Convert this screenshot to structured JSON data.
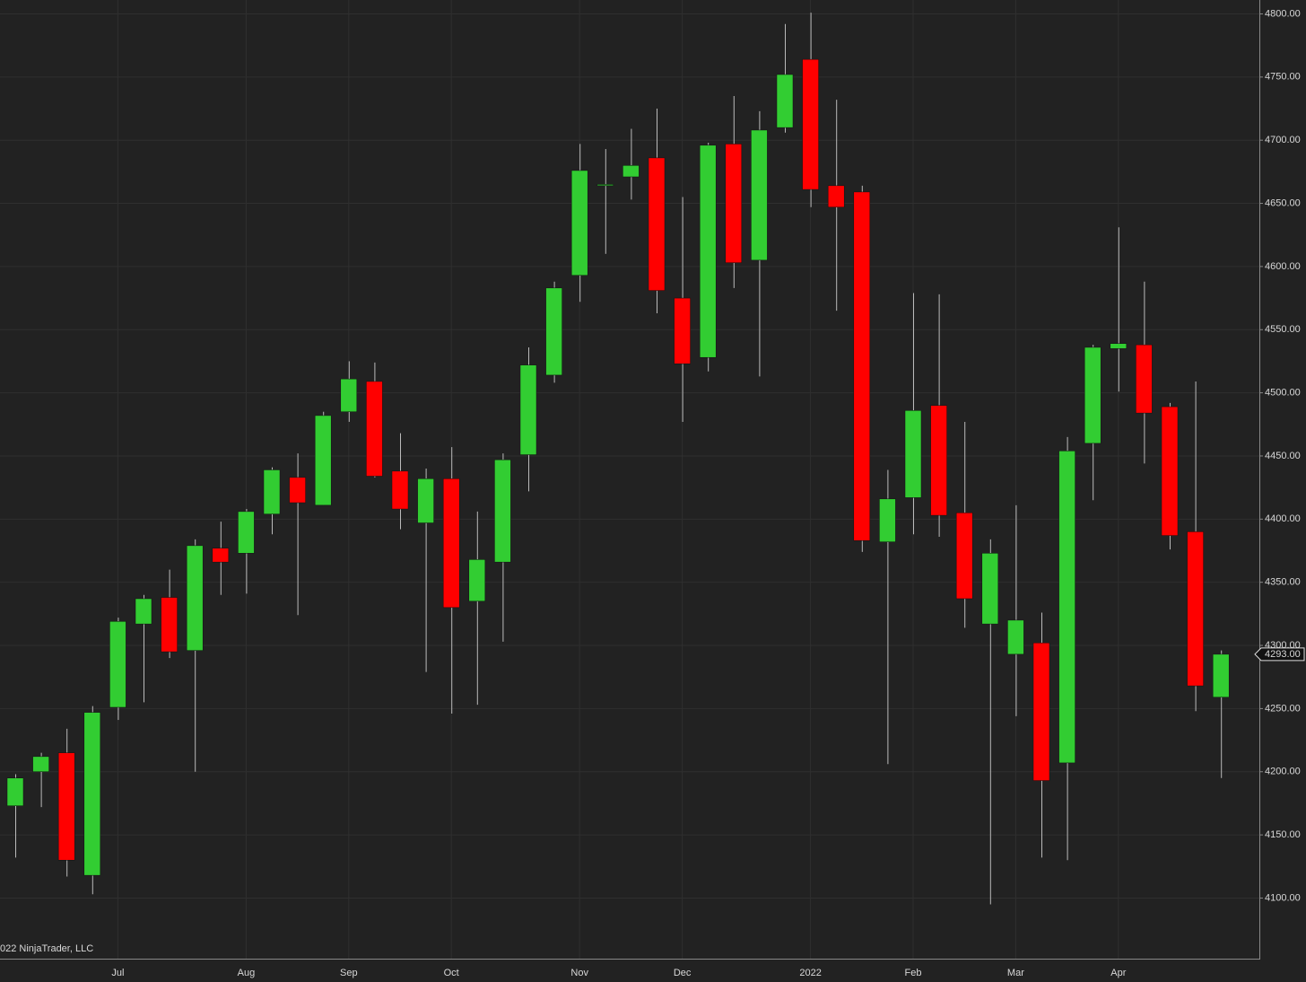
{
  "chart_data": {
    "type": "candlestick",
    "categories": [
      null,
      null,
      null,
      null,
      "Jul",
      null,
      null,
      null,
      null,
      "Aug",
      null,
      null,
      null,
      "Sep",
      null,
      null,
      null,
      "Oct",
      null,
      null,
      null,
      null,
      "Nov",
      null,
      null,
      null,
      "Dec",
      null,
      null,
      null,
      null,
      "2022",
      null,
      null,
      null,
      "Feb",
      null,
      null,
      null,
      "Mar",
      null,
      null,
      null,
      "Apr",
      null,
      null,
      null,
      null
    ],
    "open": [
      4173,
      4200,
      4215,
      4118,
      4251,
      4317,
      4338,
      4296,
      4377,
      4373,
      4404,
      4433,
      4411,
      4485,
      4509,
      4438,
      4397,
      4432,
      4335,
      4366,
      4451,
      4514,
      4593,
      4664,
      4671,
      4686,
      4575,
      4528,
      4697,
      4605,
      4710,
      4764,
      4664,
      4659,
      4382,
      4417,
      4490,
      4405,
      4317,
      4293,
      4302,
      4207,
      4460,
      4535,
      4538,
      4489,
      4390,
      4259
    ],
    "high": [
      4198,
      4215,
      4234,
      4252,
      4322,
      4340,
      4360,
      4384,
      4398,
      4408,
      4441,
      4452,
      4485,
      4525,
      4524,
      4468,
      4440,
      4457,
      4406,
      4452,
      4536,
      4588,
      4697,
      4693,
      4709,
      4725,
      4655,
      4698,
      4735,
      4723,
      4792,
      4801,
      4732,
      4664,
      4439,
      4579,
      4578,
      4477,
      4384,
      4411,
      4326,
      4465,
      4538,
      4631,
      4588,
      4492,
      4509,
      4296
    ],
    "low": [
      4132,
      4172,
      4117,
      4103,
      4241,
      4255,
      4290,
      4200,
      4340,
      4341,
      4388,
      4324,
      4411,
      4477,
      4433,
      4392,
      4279,
      4246,
      4253,
      4303,
      4422,
      4508,
      4572,
      4610,
      4653,
      4563,
      4477,
      4517,
      4583,
      4513,
      4706,
      4647,
      4565,
      4374,
      4206,
      4388,
      4386,
      4314,
      4095,
      4244,
      4132,
      4130,
      4415,
      4501,
      4444,
      4376,
      4248,
      4195
    ],
    "close": [
      4195,
      4212,
      4130,
      4247,
      4319,
      4337,
      4295,
      4379,
      4366,
      4406,
      4439,
      4413,
      4482,
      4511,
      4434,
      4408,
      4432,
      4330,
      4368,
      4447,
      4522,
      4583,
      4676,
      4665,
      4680,
      4581,
      4523,
      4696,
      4603,
      4708,
      4752,
      4661,
      4647,
      4383,
      4416,
      4486,
      4403,
      4337,
      4373,
      4320,
      4193,
      4454,
      4536,
      4539,
      4484,
      4387,
      4268,
      4293
    ],
    "up_color": "#32cd32",
    "down_color": "#ff0000",
    "ylim": [
      4052,
      4811
    ],
    "yticks": [
      {
        "value": 4100,
        "label": "4100.00"
      },
      {
        "value": 4150,
        "label": "4150.00"
      },
      {
        "value": 4200,
        "label": "4200.00"
      },
      {
        "value": 4250,
        "label": "4250.00"
      },
      {
        "value": 4300,
        "label": "4300.00"
      },
      {
        "value": 4350,
        "label": "4350.00"
      },
      {
        "value": 4400,
        "label": "4400.00"
      },
      {
        "value": 4450,
        "label": "4450.00"
      },
      {
        "value": 4500,
        "label": "4500.00"
      },
      {
        "value": 4550,
        "label": "4550.00"
      },
      {
        "value": 4600,
        "label": "4600.00"
      },
      {
        "value": 4650,
        "label": "4650.00"
      },
      {
        "value": 4700,
        "label": "4700.00"
      },
      {
        "value": 4750,
        "label": "4750.00"
      },
      {
        "value": 4800,
        "label": "4800.00"
      }
    ],
    "grid": true,
    "last_price": {
      "value": 4293,
      "label": "4293.00"
    },
    "watermark": "022 NinjaTrader, LLC"
  }
}
